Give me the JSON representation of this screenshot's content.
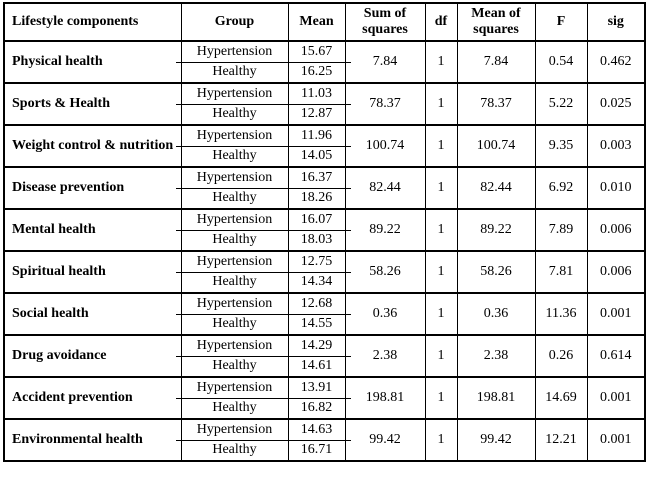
{
  "table": {
    "columns": [
      {
        "key": "component",
        "label": "Lifestyle components"
      },
      {
        "key": "group",
        "label": "Group"
      },
      {
        "key": "mean",
        "label": "Mean"
      },
      {
        "key": "sum_of_squares",
        "label": "Sum of squares"
      },
      {
        "key": "df",
        "label": "df"
      },
      {
        "key": "mean_of_squares",
        "label": "Mean of squares"
      },
      {
        "key": "f",
        "label": "F"
      },
      {
        "key": "sig",
        "label": "sig"
      }
    ],
    "rows": [
      {
        "component": "Physical health",
        "groups": [
          {
            "group": "Hypertension",
            "mean": "15.67"
          },
          {
            "group": "Healthy",
            "mean": "16.25"
          }
        ],
        "sum_of_squares": "7.84",
        "df": "1",
        "mean_of_squares": "7.84",
        "f": "0.54",
        "sig": "0.462"
      },
      {
        "component": "Sports & Health",
        "groups": [
          {
            "group": "Hypertension",
            "mean": "11.03"
          },
          {
            "group": "Healthy",
            "mean": "12.87"
          }
        ],
        "sum_of_squares": "78.37",
        "df": "1",
        "mean_of_squares": "78.37",
        "f": "5.22",
        "sig": "0.025"
      },
      {
        "component": "Weight control & nutrition",
        "groups": [
          {
            "group": "Hypertension",
            "mean": "11.96"
          },
          {
            "group": "Healthy",
            "mean": "14.05"
          }
        ],
        "sum_of_squares": "100.74",
        "df": "1",
        "mean_of_squares": "100.74",
        "f": "9.35",
        "sig": "0.003"
      },
      {
        "component": "Disease prevention",
        "groups": [
          {
            "group": "Hypertension",
            "mean": "16.37"
          },
          {
            "group": "Healthy",
            "mean": "18.26"
          }
        ],
        "sum_of_squares": "82.44",
        "df": "1",
        "mean_of_squares": "82.44",
        "f": "6.92",
        "sig": "0.010"
      },
      {
        "component": "Mental health",
        "groups": [
          {
            "group": "Hypertension",
            "mean": "16.07"
          },
          {
            "group": "Healthy",
            "mean": "18.03"
          }
        ],
        "sum_of_squares": "89.22",
        "df": "1",
        "mean_of_squares": "89.22",
        "f": "7.89",
        "sig": "0.006"
      },
      {
        "component": "Spiritual health",
        "groups": [
          {
            "group": "Hypertension",
            "mean": "12.75"
          },
          {
            "group": "Healthy",
            "mean": "14.34"
          }
        ],
        "sum_of_squares": "58.26",
        "df": "1",
        "mean_of_squares": "58.26",
        "f": "7.81",
        "sig": "0.006"
      },
      {
        "component": "Social health",
        "groups": [
          {
            "group": "Hypertension",
            "mean": "12.68"
          },
          {
            "group": "Healthy",
            "mean": "14.55"
          }
        ],
        "sum_of_squares": "0.36",
        "df": "1",
        "mean_of_squares": "0.36",
        "f": "11.36",
        "sig": "0.001"
      },
      {
        "component": "Drug avoidance",
        "groups": [
          {
            "group": "Hypertension",
            "mean": "14.29"
          },
          {
            "group": "Healthy",
            "mean": "14.61"
          }
        ],
        "sum_of_squares": "2.38",
        "df": "1",
        "mean_of_squares": "2.38",
        "f": "0.26",
        "sig": "0.614"
      },
      {
        "component": "Accident prevention",
        "groups": [
          {
            "group": "Hypertension",
            "mean": "13.91"
          },
          {
            "group": "Healthy",
            "mean": "16.82"
          }
        ],
        "sum_of_squares": "198.81",
        "df": "1",
        "mean_of_squares": "198.81",
        "f": "14.69",
        "sig": "0.001"
      },
      {
        "component": "Environmental health",
        "groups": [
          {
            "group": "Hypertension",
            "mean": "14.63"
          },
          {
            "group": "Healthy",
            "mean": "16.71"
          }
        ],
        "sum_of_squares": "99.42",
        "df": "1",
        "mean_of_squares": "99.42",
        "f": "12.21",
        "sig": "0.001"
      }
    ],
    "colors": {
      "border": "#000000",
      "text": "#000000",
      "background": "#ffffff"
    }
  }
}
